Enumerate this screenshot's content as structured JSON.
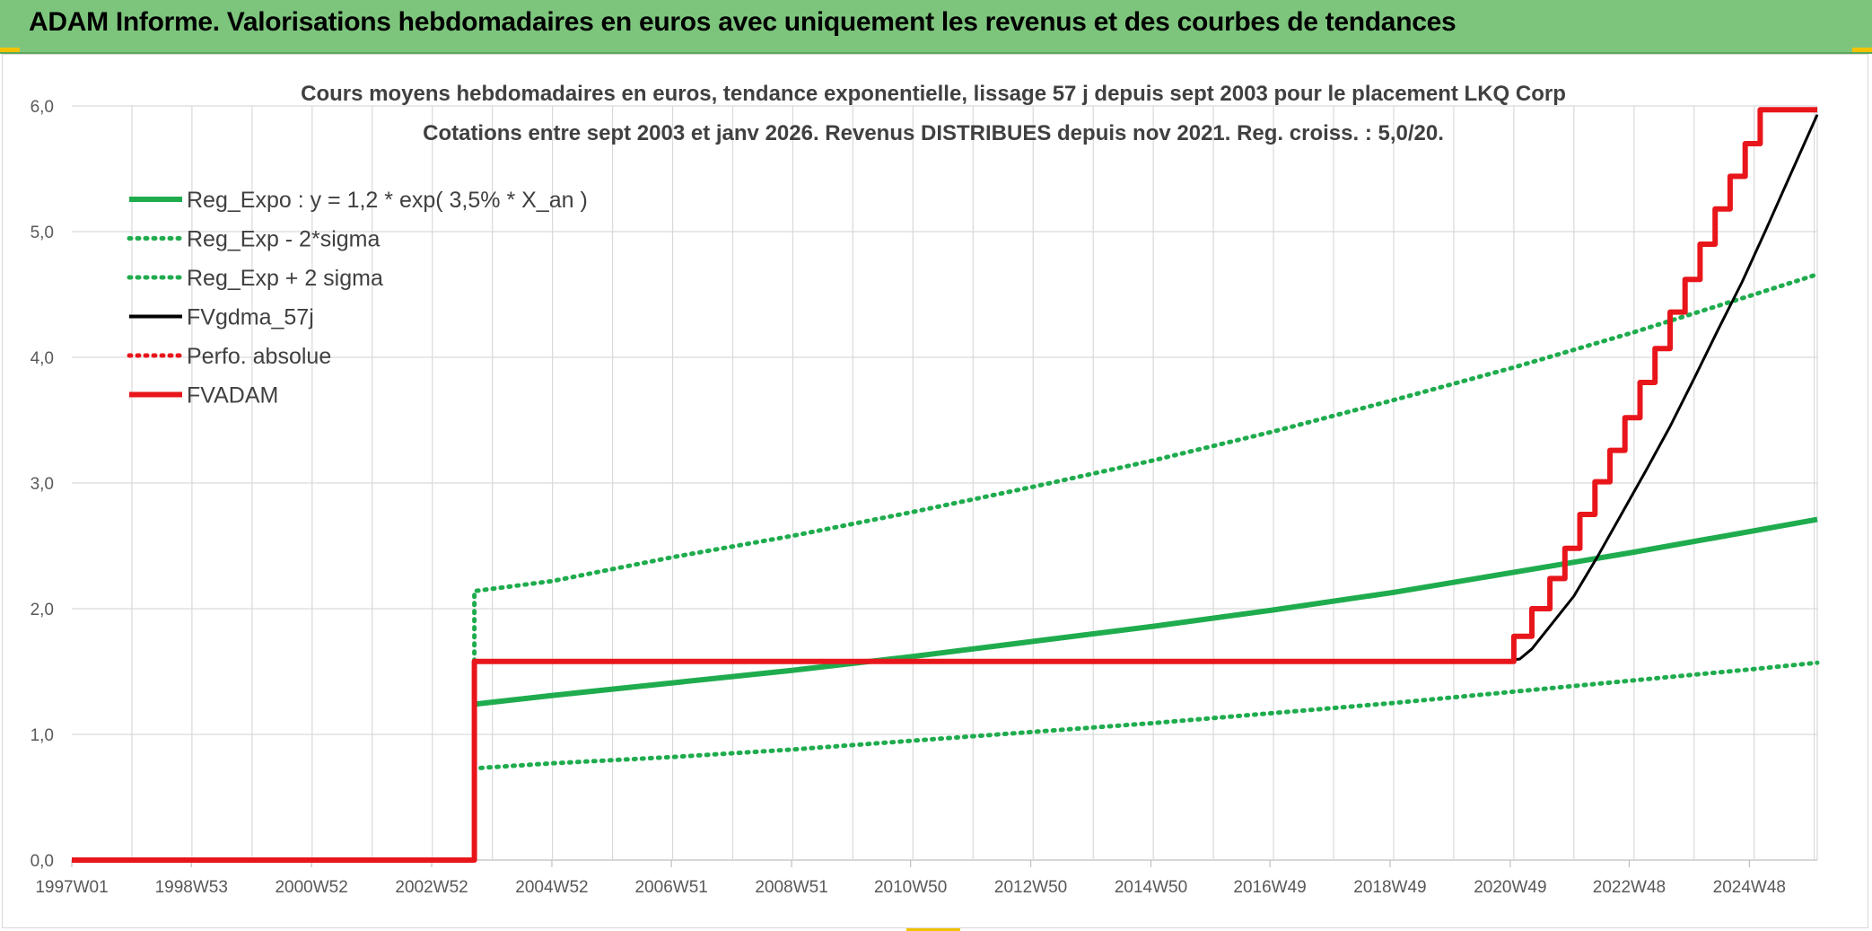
{
  "banner": {
    "title": "ADAM Informe. Valorisations hebdomadaires en euros avec uniquement les revenus et des courbes de tendances"
  },
  "colors": {
    "banner_bg": "#7dc57d",
    "green": "#1fac4e",
    "black": "#000000",
    "red": "#e8161b",
    "grid": "#d9d9d9",
    "text": "#404040"
  },
  "chart_data": {
    "type": "line",
    "title": "Cours moyens hebdomadaires en euros, tendance exponentielle, lissage 57 j depuis sept 2003 pour le placement LKQ Corp",
    "subtitle": "Cotations entre sept 2003 et janv 2026. Revenus DISTRIBUES depuis nov 2021. Reg. croiss. : 5,0/20.",
    "xlabel": "",
    "ylabel": "",
    "ylim": [
      0,
      6
    ],
    "yticks": [
      "0,0",
      "1,0",
      "2,0",
      "3,0",
      "4,0",
      "5,0",
      "6,0"
    ],
    "xlim": [
      1997.0,
      2026.05
    ],
    "xticks": [
      {
        "label": "1997W01",
        "x": 1997.0
      },
      {
        "label": "1998W53",
        "x": 1998.99
      },
      {
        "label": "2000W52",
        "x": 2000.99
      },
      {
        "label": "2002W52",
        "x": 2002.99
      },
      {
        "label": "2004W52",
        "x": 2004.99
      },
      {
        "label": "2006W51",
        "x": 2006.98
      },
      {
        "label": "2008W51",
        "x": 2008.98
      },
      {
        "label": "2010W50",
        "x": 2010.96
      },
      {
        "label": "2012W50",
        "x": 2012.96
      },
      {
        "label": "2014W50",
        "x": 2014.96
      },
      {
        "label": "2016W49",
        "x": 2016.94
      },
      {
        "label": "2018W49",
        "x": 2018.94
      },
      {
        "label": "2020W49",
        "x": 2020.94
      },
      {
        "label": "2022W48",
        "x": 2022.92
      },
      {
        "label": "2024W48",
        "x": 2024.92
      }
    ],
    "grid": true,
    "legend_position": "top-left",
    "series": [
      {
        "name": "Reg_Expo : y = 1,2 * exp( 3,5% *  X_an )",
        "style": "solid",
        "color": "#1fac4e",
        "x": [
          2003.7,
          2005.0,
          2007.0,
          2009.0,
          2011.0,
          2013.0,
          2015.0,
          2017.0,
          2019.0,
          2021.0,
          2023.0,
          2025.0,
          2026.05
        ],
        "y": [
          1.24,
          1.31,
          1.41,
          1.51,
          1.62,
          1.74,
          1.86,
          1.99,
          2.13,
          2.29,
          2.45,
          2.62,
          2.71
        ]
      },
      {
        "name": "Reg_Exp - 2*sigma",
        "style": "dotted",
        "color": "#1fac4e",
        "x": [
          2003.7,
          2003.7,
          2005.0,
          2007.0,
          2009.0,
          2011.0,
          2013.0,
          2015.0,
          2017.0,
          2019.0,
          2021.0,
          2023.0,
          2025.0,
          2026.05
        ],
        "y": [
          1.58,
          0.73,
          0.77,
          0.82,
          0.88,
          0.95,
          1.02,
          1.09,
          1.17,
          1.25,
          1.34,
          1.43,
          1.52,
          1.57
        ]
      },
      {
        "name": "Reg_Exp + 2 sigma",
        "style": "dotted",
        "color": "#1fac4e",
        "x": [
          2003.7,
          2003.7,
          2005.0,
          2007.0,
          2009.0,
          2011.0,
          2013.0,
          2015.0,
          2017.0,
          2019.0,
          2021.0,
          2023.0,
          2025.0,
          2026.05
        ],
        "y": [
          1.58,
          2.14,
          2.22,
          2.41,
          2.58,
          2.77,
          2.97,
          3.18,
          3.41,
          3.66,
          3.92,
          4.2,
          4.5,
          4.66
        ]
      },
      {
        "name": "FVgdma_57j",
        "style": "solid",
        "color": "#000000",
        "x": [
          2020.8,
          2021.1,
          2021.3,
          2021.6,
          2022.0,
          2022.4,
          2022.8,
          2023.2,
          2023.6,
          2024.0,
          2024.4,
          2024.8,
          2025.2,
          2025.6,
          2026.05
        ],
        "y": [
          1.58,
          1.6,
          1.68,
          1.86,
          2.1,
          2.42,
          2.76,
          3.1,
          3.45,
          3.83,
          4.22,
          4.6,
          5.02,
          5.45,
          5.93
        ]
      },
      {
        "name": "Perfo. absolue",
        "style": "dotted",
        "color": "#e8161b",
        "x": [],
        "y": []
      },
      {
        "name": "FVADAM",
        "style": "solid",
        "color": "#e8161b",
        "x": [
          1997.0,
          2003.7,
          2003.7,
          2021.0,
          2021.0,
          2021.3,
          2021.3,
          2021.6,
          2021.6,
          2021.85,
          2021.85,
          2022.1,
          2022.1,
          2022.35,
          2022.35,
          2022.6,
          2022.6,
          2022.85,
          2022.85,
          2023.1,
          2023.1,
          2023.35,
          2023.35,
          2023.6,
          2023.6,
          2023.85,
          2023.85,
          2024.1,
          2024.1,
          2024.35,
          2024.35,
          2024.6,
          2024.6,
          2024.85,
          2024.85,
          2025.1,
          2025.1,
          2025.35,
          2025.35,
          2025.6,
          2025.6,
          2025.85,
          2025.85,
          2026.05
        ],
        "y": [
          0.0,
          0.0,
          1.58,
          1.58,
          1.78,
          1.78,
          2.0,
          2.0,
          2.24,
          2.24,
          2.48,
          2.48,
          2.75,
          2.75,
          3.01,
          3.01,
          3.26,
          3.26,
          3.52,
          3.52,
          3.8,
          3.8,
          4.07,
          4.07,
          4.36,
          4.36,
          4.62,
          4.62,
          4.9,
          4.9,
          5.18,
          5.18,
          5.44,
          5.44,
          5.7,
          5.7,
          5.97,
          5.97,
          5.97,
          5.97,
          5.97,
          5.97,
          5.97,
          5.97
        ]
      }
    ]
  }
}
